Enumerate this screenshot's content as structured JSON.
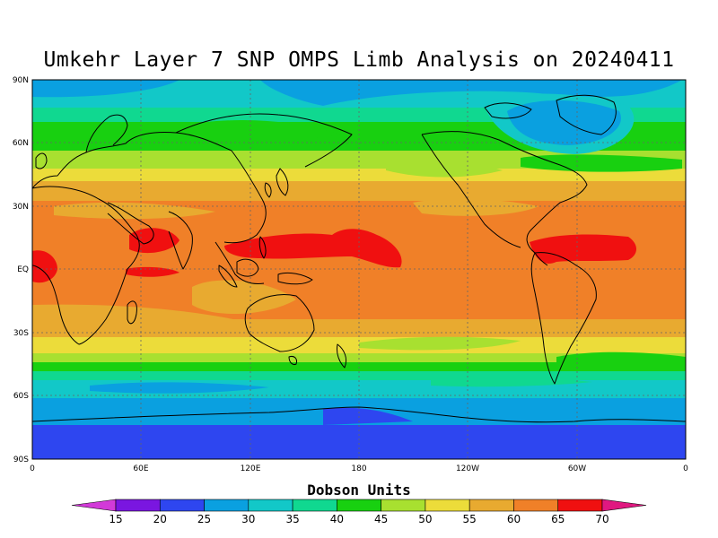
{
  "title": "Umkehr Layer 7 SNP OMPS Limb Analysis on 20240411",
  "lat_labels": [
    "90N",
    "60N",
    "30N",
    "EQ",
    "30S",
    "60S",
    "90S"
  ],
  "lon_labels": [
    "0",
    "60E",
    "120E",
    "180",
    "120W",
    "60W",
    "0"
  ],
  "colorbar": {
    "title": "Dobson Units",
    "levels": [
      "15",
      "20",
      "25",
      "30",
      "35",
      "40",
      "45",
      "50",
      "55",
      "60",
      "65",
      "70"
    ],
    "colors": [
      "#d23ad8",
      "#7a16e0",
      "#2e46f0",
      "#0aa0e0",
      "#12c8c8",
      "#10d890",
      "#18d010",
      "#a8e030",
      "#ecdc3a",
      "#e8aa30",
      "#f08028",
      "#f01010",
      "#e01880"
    ]
  },
  "colors": {
    "c20": "#2e46f0",
    "c25": "#0aa0e0",
    "c30": "#12c8c8",
    "c35": "#10d890",
    "c40": "#18d010",
    "c45": "#a8e030",
    "c50": "#ecdc3a",
    "c55": "#e8aa30",
    "c60": "#f08028",
    "c65": "#f01010"
  }
}
